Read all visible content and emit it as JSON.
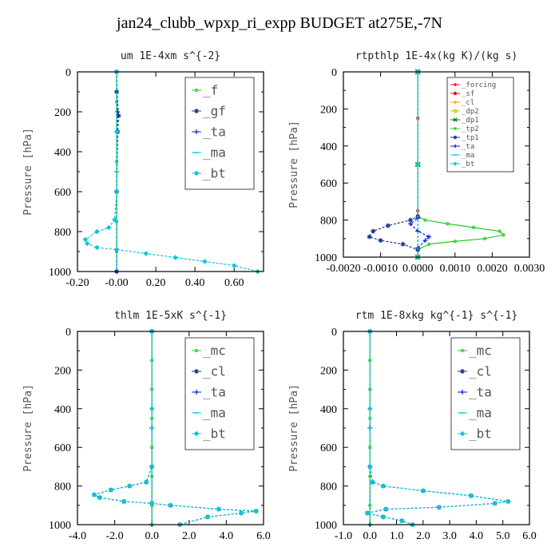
{
  "title": "jan24_clubb_wpxp_ri_expp  BUDGET at275E,-7N",
  "colors": {
    "green": "#22cc22",
    "dark_green": "#007700",
    "cyan": "#00c8d8",
    "dark_blue": "#1a3a8a",
    "blue": "#0a1aee",
    "red": "#dd1111",
    "orange": "#ff9900",
    "yellow": "#e0c000",
    "gray": "#666666"
  },
  "chart_data": [
    {
      "type": "line",
      "title": "um  1E-4xm s^{-2}",
      "ylabel": "Pressure [hPa]",
      "xlim": [
        -0.2,
        0.75
      ],
      "ylim": [
        1000,
        0
      ],
      "xticks": [
        "-0.20",
        "-0.00",
        "0.20",
        "0.40",
        "0.60"
      ],
      "xtick_values": [
        -0.2,
        0.0,
        0.2,
        0.4,
        0.6
      ],
      "yticks": [
        "0",
        "200",
        "400",
        "600",
        "800",
        "1000"
      ],
      "ytick_values": [
        0,
        200,
        400,
        600,
        800,
        1000
      ],
      "legend_position": "top-right",
      "series": [
        {
          "name": "_f",
          "color": "green",
          "marker": "circle",
          "x": [
            0,
            0,
            0,
            0,
            0,
            0,
            0,
            0
          ],
          "y": [
            0,
            150,
            300,
            450,
            600,
            750,
            900,
            1000
          ]
        },
        {
          "name": "_gf",
          "color": "dark_blue",
          "marker": "asterisk",
          "x": [
            0,
            0.0,
            0.01,
            0.005,
            0.0,
            0.0
          ],
          "y": [
            0,
            100,
            220,
            300,
            600,
            1000
          ]
        },
        {
          "name": "_ta",
          "color": "blue",
          "marker": "plus",
          "x": [
            0,
            0.005,
            0.0,
            0.0
          ],
          "y": [
            0,
            200,
            600,
            1000
          ]
        },
        {
          "name": "_ma",
          "color": "cyan",
          "marker": "dash",
          "x": [
            0,
            0,
            0
          ],
          "y": [
            0,
            500,
            1000
          ]
        },
        {
          "name": "_bt",
          "color": "cyan",
          "marker": "diamond",
          "x": [
            0,
            0,
            0,
            -0.01,
            -0.04,
            -0.1,
            -0.16,
            -0.15,
            -0.1,
            0.0,
            0.15,
            0.3,
            0.45,
            0.6,
            0.72
          ],
          "y": [
            0,
            300,
            600,
            740,
            780,
            800,
            840,
            860,
            880,
            890,
            910,
            930,
            950,
            970,
            1000
          ]
        }
      ]
    },
    {
      "type": "line",
      "title": "rtpthlp  1E-4x(kg K)/(kg s)",
      "ylabel": "Pressure [hPa]",
      "xlim": [
        -0.002,
        0.003
      ],
      "ylim": [
        1000,
        0
      ],
      "xticks": [
        "-0.0020",
        "-0.0010",
        "0.0000",
        "0.0010",
        "0.0020",
        "0.0030"
      ],
      "xtick_values": [
        -0.002,
        -0.001,
        0.0,
        0.001,
        0.002,
        0.003
      ],
      "yticks": [
        "0",
        "200",
        "400",
        "600",
        "800",
        "1000"
      ],
      "ytick_values": [
        0,
        200,
        400,
        600,
        800,
        1000
      ],
      "legend_position": "top-right",
      "series": [
        {
          "name": "_forcing",
          "color": "red",
          "marker": "circle",
          "x": [
            0,
            0,
            0,
            0,
            0
          ],
          "y": [
            0,
            250,
            500,
            750,
            1000
          ]
        },
        {
          "name": "_sf",
          "color": "red",
          "marker": "asterisk",
          "x": [
            0,
            0,
            0
          ],
          "y": [
            0,
            500,
            1000
          ]
        },
        {
          "name": "_cl",
          "color": "orange",
          "marker": "plus",
          "x": [
            0,
            0,
            0
          ],
          "y": [
            0,
            500,
            1000
          ]
        },
        {
          "name": "_dp2",
          "color": "yellow",
          "marker": "square",
          "x": [
            0,
            0,
            0
          ],
          "y": [
            0,
            500,
            1000
          ]
        },
        {
          "name": "_dp1",
          "color": "dark_green",
          "marker": "cross",
          "x": [
            0,
            0,
            0
          ],
          "y": [
            0,
            500,
            1000
          ]
        },
        {
          "name": "_tp2",
          "color": "green",
          "marker": "circle",
          "x": [
            0,
            0,
            0.0002,
            0.0008,
            0.0015,
            0.0022,
            0.0023,
            0.0018,
            0.001,
            0.0003,
            0.0
          ],
          "y": [
            0,
            780,
            800,
            820,
            840,
            860,
            880,
            900,
            915,
            930,
            960
          ]
        },
        {
          "name": "_tp1",
          "color": "dark_blue",
          "marker": "asterisk",
          "x": [
            0,
            0,
            -0.0002,
            -0.0008,
            -0.0012,
            -0.0013,
            -0.001,
            -0.0004,
            0.0
          ],
          "y": [
            0,
            780,
            800,
            830,
            860,
            890,
            910,
            930,
            960
          ]
        },
        {
          "name": "_ta",
          "color": "blue",
          "marker": "plus",
          "x": [
            0,
            0,
            -0.0002,
            0.0,
            0.0003,
            0.0002,
            0.0
          ],
          "y": [
            0,
            790,
            820,
            860,
            890,
            910,
            950
          ]
        },
        {
          "name": "_ma",
          "color": "cyan",
          "marker": "dash",
          "x": [
            0,
            0,
            0
          ],
          "y": [
            0,
            500,
            1000
          ]
        },
        {
          "name": "_bt",
          "color": "cyan",
          "marker": "diamond",
          "x": [
            0,
            0,
            0
          ],
          "y": [
            0,
            500,
            1000
          ]
        }
      ]
    },
    {
      "type": "line",
      "title": "thlm  1E-5xK s^{-1}",
      "ylabel": "Pressure [hPa]",
      "xlim": [
        -4.0,
        6.0
      ],
      "ylim": [
        1000,
        0
      ],
      "xticks": [
        "-4.0",
        "-2.0",
        "0.0",
        "2.0",
        "4.0",
        "6.0"
      ],
      "xtick_values": [
        -4,
        -2,
        0,
        2,
        4,
        6
      ],
      "yticks": [
        "0",
        "200",
        "400",
        "600",
        "800",
        "1000"
      ],
      "ytick_values": [
        0,
        200,
        400,
        600,
        800,
        1000
      ],
      "legend_position": "top-right",
      "series": [
        {
          "name": "_mc",
          "color": "green",
          "marker": "circle",
          "x": [
            0,
            0,
            0,
            0,
            0,
            0,
            0,
            0
          ],
          "y": [
            0,
            150,
            300,
            450,
            600,
            750,
            900,
            1000
          ]
        },
        {
          "name": "_cl",
          "color": "dark_blue",
          "marker": "asterisk",
          "x": [
            0,
            0,
            -0.3,
            -1.2,
            -2.2,
            -3.1,
            -2.8,
            -1.5,
            0.0,
            1.0,
            3.6,
            5.6,
            4.8,
            3.0,
            1.5
          ],
          "y": [
            0,
            700,
            780,
            800,
            820,
            845,
            860,
            880,
            890,
            900,
            920,
            930,
            940,
            960,
            1000
          ]
        },
        {
          "name": "_ta",
          "color": "blue",
          "marker": "plus",
          "x": [
            0,
            0,
            0
          ],
          "y": [
            0,
            500,
            1000
          ]
        },
        {
          "name": "_ma",
          "color": "cyan",
          "marker": "dash",
          "x": [
            0,
            0,
            0
          ],
          "y": [
            0,
            500,
            1000
          ]
        },
        {
          "name": "_bt",
          "color": "cyan",
          "marker": "diamond",
          "x": [
            0,
            0,
            0,
            -0.3,
            -1.2,
            -2.2,
            -3.1,
            -2.8,
            -1.5,
            0.0,
            1.0,
            3.6,
            5.6,
            4.8,
            3.0,
            1.5
          ],
          "y": [
            0,
            400,
            700,
            780,
            800,
            820,
            845,
            860,
            880,
            890,
            900,
            920,
            930,
            940,
            960,
            1000
          ]
        }
      ]
    },
    {
      "type": "line",
      "title": "rtm  1E-8xkg kg^{-1} s^{-1}",
      "ylabel": "Pressure [hPa]",
      "xlim": [
        -1.0,
        6.0
      ],
      "ylim": [
        1000,
        0
      ],
      "xticks": [
        "-1.0",
        "0.0",
        "1.0",
        "2.0",
        "3.0",
        "4.0",
        "5.0",
        "6.0"
      ],
      "xtick_values": [
        -1,
        0,
        1,
        2,
        3,
        4,
        5,
        6
      ],
      "yticks": [
        "0",
        "200",
        "400",
        "600",
        "800",
        "1000"
      ],
      "ytick_values": [
        0,
        200,
        400,
        600,
        800,
        1000
      ],
      "legend_position": "top-right",
      "series": [
        {
          "name": "_mc",
          "color": "green",
          "marker": "circle",
          "x": [
            0,
            0,
            0,
            0,
            0,
            0,
            0,
            0
          ],
          "y": [
            0,
            150,
            300,
            450,
            600,
            750,
            900,
            1000
          ]
        },
        {
          "name": "_cl",
          "color": "dark_blue",
          "marker": "asterisk",
          "x": [
            0,
            0,
            0.1,
            0.5,
            2.0,
            3.8,
            5.2,
            4.7,
            2.6,
            0.6,
            -0.1,
            0.5,
            1.2,
            1.6
          ],
          "y": [
            0,
            700,
            780,
            800,
            825,
            850,
            880,
            890,
            910,
            920,
            940,
            960,
            980,
            1000
          ]
        },
        {
          "name": "_ta",
          "color": "blue",
          "marker": "plus",
          "x": [
            0,
            0,
            0
          ],
          "y": [
            0,
            500,
            1000
          ]
        },
        {
          "name": "_ma",
          "color": "cyan",
          "marker": "dash",
          "x": [
            0,
            0,
            0
          ],
          "y": [
            0,
            500,
            1000
          ]
        },
        {
          "name": "_bt",
          "color": "cyan",
          "marker": "diamond",
          "x": [
            0,
            0,
            0,
            0.1,
            0.5,
            2.0,
            3.8,
            5.2,
            4.7,
            2.6,
            0.6,
            -0.1,
            0.5,
            1.2,
            1.6
          ],
          "y": [
            0,
            400,
            700,
            780,
            800,
            825,
            850,
            880,
            890,
            910,
            920,
            940,
            960,
            980,
            1000
          ]
        }
      ]
    }
  ]
}
